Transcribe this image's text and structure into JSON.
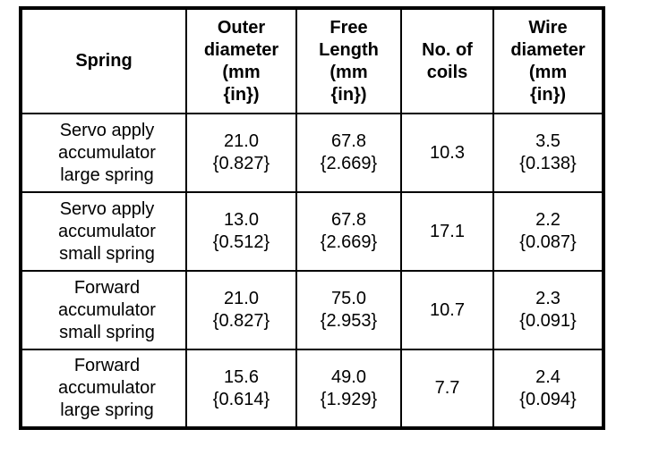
{
  "page": {
    "background": "#ffffff",
    "border_color": "#000000",
    "text_color": "#000000"
  },
  "table": {
    "headers": {
      "spring": "Spring",
      "outer_diameter": "Outer\ndiameter\n(mm\n{in})",
      "free_length": "Free\nLength\n(mm\n{in})",
      "no_of_coils": "No. of\ncoils",
      "wire_diameter": "Wire\ndiameter\n(mm\n{in})"
    },
    "rows": [
      {
        "spring": "Servo apply\naccumulator\nlarge spring",
        "outer_diameter": "21.0\n{0.827}",
        "free_length": "67.8\n{2.669}",
        "no_of_coils": "10.3",
        "wire_diameter": "3.5\n{0.138}"
      },
      {
        "spring": "Servo apply\naccumulator\nsmall spring",
        "outer_diameter": "13.0\n{0.512}",
        "free_length": "67.8\n{2.669}",
        "no_of_coils": "17.1",
        "wire_diameter": "2.2\n{0.087}"
      },
      {
        "spring": "Forward\naccumulator\nsmall spring",
        "outer_diameter": "21.0\n{0.827}",
        "free_length": "75.0\n{2.953}",
        "no_of_coils": "10.7",
        "wire_diameter": "2.3\n{0.091}"
      },
      {
        "spring": "Forward\naccumulator\nlarge spring",
        "outer_diameter": "15.6\n{0.614}",
        "free_length": "49.0\n{1.929}",
        "no_of_coils": "7.7",
        "wire_diameter": "2.4\n{0.094}"
      }
    ]
  }
}
